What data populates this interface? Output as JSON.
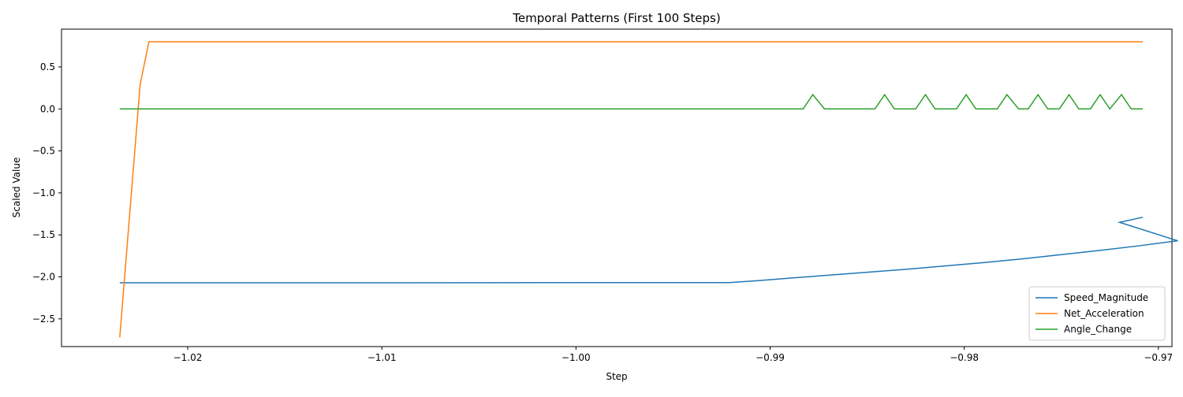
{
  "chart_data": {
    "type": "line",
    "title": "Temporal Patterns (First 100 Steps)",
    "xlabel": "Step",
    "ylabel": "Scaled Value",
    "xlim": [
      -1.0265,
      -0.9693
    ],
    "ylim": [
      -2.83,
      0.95
    ],
    "x_ticks": [
      -1.02,
      -1.01,
      -1.0,
      -0.99,
      -0.98,
      -0.97
    ],
    "x_tick_labels": [
      "−1.02",
      "−1.01",
      "−1.00",
      "−0.99",
      "−0.98",
      "−0.97"
    ],
    "y_ticks": [
      0.5,
      0.0,
      -0.5,
      -1.0,
      -1.5,
      -2.0,
      -2.5
    ],
    "y_tick_labels": [
      "0.5",
      "0.0",
      "−0.5",
      "−1.0",
      "−1.5",
      "−2.0",
      "−2.5"
    ],
    "grid": false,
    "legend_position": "lower right",
    "series": [
      {
        "name": "Speed_Magnitude",
        "color": "#1f77b4",
        "points": [
          [
            -1.0235,
            -2.07
          ],
          [
            -1.01,
            -2.07
          ],
          [
            -0.9973,
            -2.068
          ],
          [
            -0.9921,
            -2.068
          ],
          [
            -0.9906,
            -2.045
          ],
          [
            -0.989,
            -2.015
          ],
          [
            -0.987,
            -1.98
          ],
          [
            -0.985,
            -1.945
          ],
          [
            -0.983,
            -1.91
          ],
          [
            -0.981,
            -1.87
          ],
          [
            -0.979,
            -1.83
          ],
          [
            -0.977,
            -1.785
          ],
          [
            -0.975,
            -1.735
          ],
          [
            -0.973,
            -1.685
          ],
          [
            -0.971,
            -1.63
          ],
          [
            -0.969,
            -1.57
          ],
          [
            -0.972,
            -1.35
          ],
          [
            -0.9708,
            -1.29
          ]
        ]
      },
      {
        "name": "Net_Acceleration",
        "color": "#ff7f0e",
        "points": [
          [
            -1.0235,
            -2.72
          ],
          [
            -1.02245,
            0.29
          ],
          [
            -1.022,
            0.8
          ],
          [
            -0.9708,
            0.8
          ]
        ]
      },
      {
        "name": "Angle_Change",
        "color": "#2ca02c",
        "points": [
          [
            -1.0235,
            0.0
          ],
          [
            -0.9883,
            0.0
          ],
          [
            -0.9878,
            0.17
          ],
          [
            -0.9872,
            0.0
          ],
          [
            -0.9846,
            0.0
          ],
          [
            -0.9841,
            0.17
          ],
          [
            -0.9836,
            0.0
          ],
          [
            -0.9825,
            0.0
          ],
          [
            -0.982,
            0.17
          ],
          [
            -0.9815,
            0.0
          ],
          [
            -0.9804,
            0.0
          ],
          [
            -0.9799,
            0.17
          ],
          [
            -0.9794,
            0.0
          ],
          [
            -0.9783,
            0.0
          ],
          [
            -0.9778,
            0.17
          ],
          [
            -0.9772,
            0.0
          ],
          [
            -0.9767,
            0.0
          ],
          [
            -0.9762,
            0.17
          ],
          [
            -0.9757,
            0.0
          ],
          [
            -0.9751,
            0.0
          ],
          [
            -0.9746,
            0.17
          ],
          [
            -0.9741,
            0.0
          ],
          [
            -0.9735,
            0.0
          ],
          [
            -0.973,
            0.17
          ],
          [
            -0.9725,
            0.0
          ],
          [
            -0.9719,
            0.17
          ],
          [
            -0.9714,
            0.0
          ],
          [
            -0.9708,
            0.0
          ]
        ]
      }
    ]
  }
}
